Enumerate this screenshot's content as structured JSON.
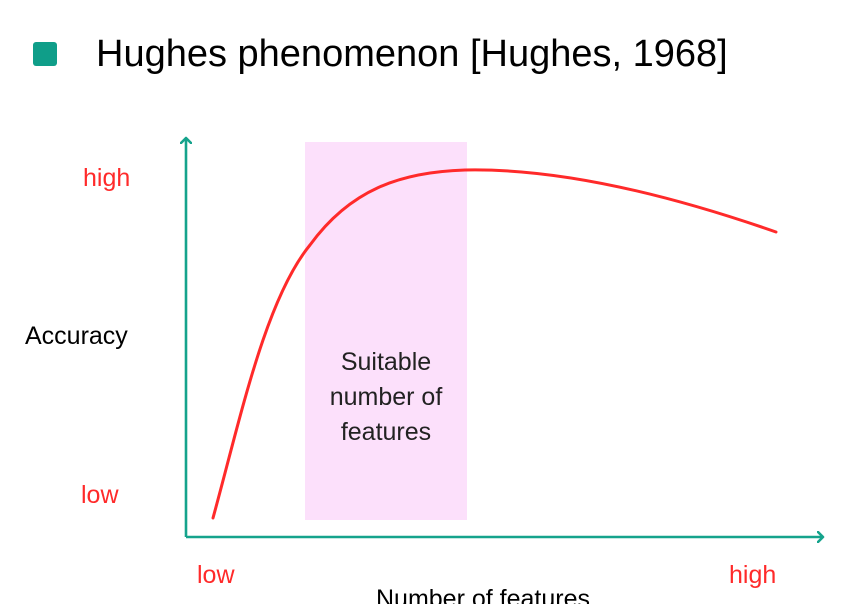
{
  "slide": {
    "title": "Hughes phenomenon [Hughes, 1968]"
  },
  "diagram": {
    "y_axis_label": "Accuracy",
    "x_axis_label": "Number of features",
    "y_high": "high",
    "y_low": "low",
    "x_low": "low",
    "x_high": "high",
    "region_label_lines": [
      "Suitable",
      "number of",
      "features"
    ]
  },
  "colors": {
    "axis": "#15a38c",
    "curve": "#ff2a2a",
    "tick_labels": "#ff2a2a",
    "region_fill": "#fce0fb",
    "bullet": "#0f9e89"
  }
}
